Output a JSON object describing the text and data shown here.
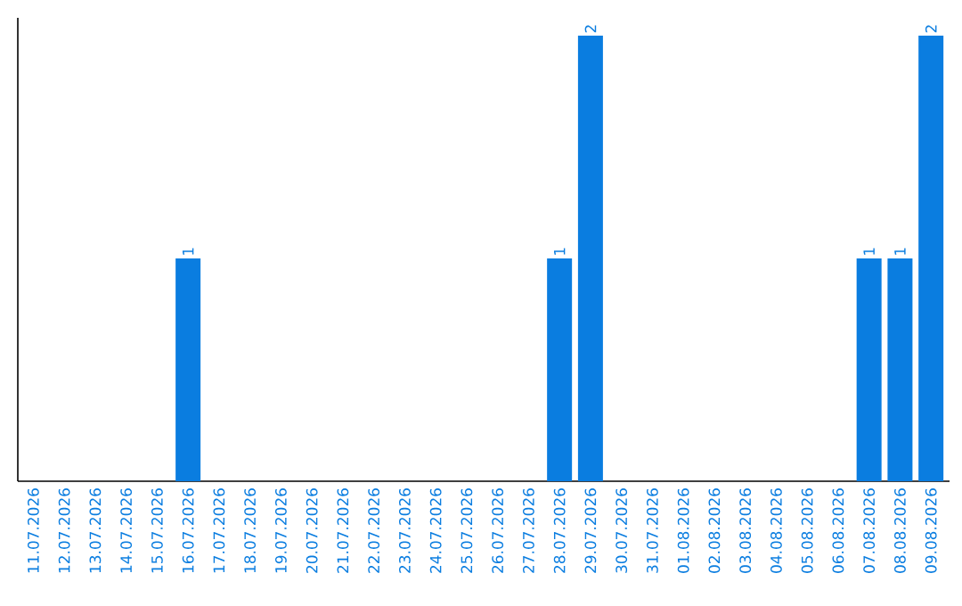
{
  "chart_data": {
    "type": "bar",
    "categories": [
      "11.07.2026",
      "12.07.2026",
      "13.07.2026",
      "14.07.2026",
      "15.07.2026",
      "16.07.2026",
      "17.07.2026",
      "18.07.2026",
      "19.07.2026",
      "20.07.2026",
      "21.07.2026",
      "22.07.2026",
      "23.07.2026",
      "24.07.2026",
      "25.07.2026",
      "26.07.2026",
      "27.07.2026",
      "28.07.2026",
      "29.07.2026",
      "30.07.2026",
      "31.07.2026",
      "01.08.2026",
      "02.08.2026",
      "03.08.2026",
      "04.08.2026",
      "05.08.2026",
      "06.08.2026",
      "07.08.2026",
      "08.08.2026",
      "09.08.2026"
    ],
    "values": [
      0,
      0,
      0,
      0,
      0,
      1,
      0,
      0,
      0,
      0,
      0,
      0,
      0,
      0,
      0,
      0,
      0,
      1,
      2,
      0,
      0,
      0,
      0,
      0,
      0,
      0,
      0,
      1,
      1,
      2
    ],
    "value_labels": [
      null,
      null,
      null,
      null,
      null,
      "1",
      null,
      null,
      null,
      null,
      null,
      null,
      null,
      null,
      null,
      null,
      null,
      "1",
      "2",
      null,
      null,
      null,
      null,
      null,
      null,
      null,
      null,
      "1",
      "1",
      "2"
    ],
    "color": "#0a7de0",
    "ylim": [
      0,
      2.08
    ],
    "tick_labels": "x"
  }
}
